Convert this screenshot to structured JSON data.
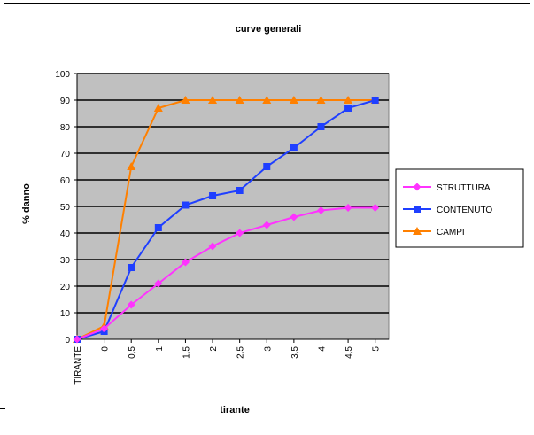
{
  "chart_data": {
    "type": "line",
    "title": "curve generali",
    "xlabel": "tirante",
    "ylabel": "% danno",
    "categories": [
      "TIRANTE",
      "0",
      "0,5",
      "1",
      "1,5",
      "2",
      "2,5",
      "3",
      "3,5",
      "4",
      "4,5",
      "5"
    ],
    "ylim": [
      0,
      100
    ],
    "yticks": [
      0,
      10,
      20,
      30,
      40,
      50,
      60,
      70,
      80,
      90,
      100
    ],
    "grid": true,
    "plot_background": "#c0c0c0",
    "legend_position": "right",
    "series": [
      {
        "name": "STRUTTURA",
        "color": "#ff33ff",
        "marker": "diamond",
        "values": [
          0,
          4,
          13,
          21,
          29,
          35,
          40,
          43,
          46,
          48.5,
          49.5,
          49.5
        ]
      },
      {
        "name": "CONTENUTO",
        "color": "#1f3fff",
        "marker": "square",
        "values": [
          0,
          3,
          27,
          42,
          50.5,
          54,
          56,
          65,
          72,
          80,
          87,
          90
        ]
      },
      {
        "name": "CAMPI",
        "color": "#ff8000",
        "marker": "triangle",
        "values": [
          0,
          5,
          65,
          87,
          90,
          90,
          90,
          90,
          90,
          90,
          90,
          90
        ]
      }
    ]
  }
}
